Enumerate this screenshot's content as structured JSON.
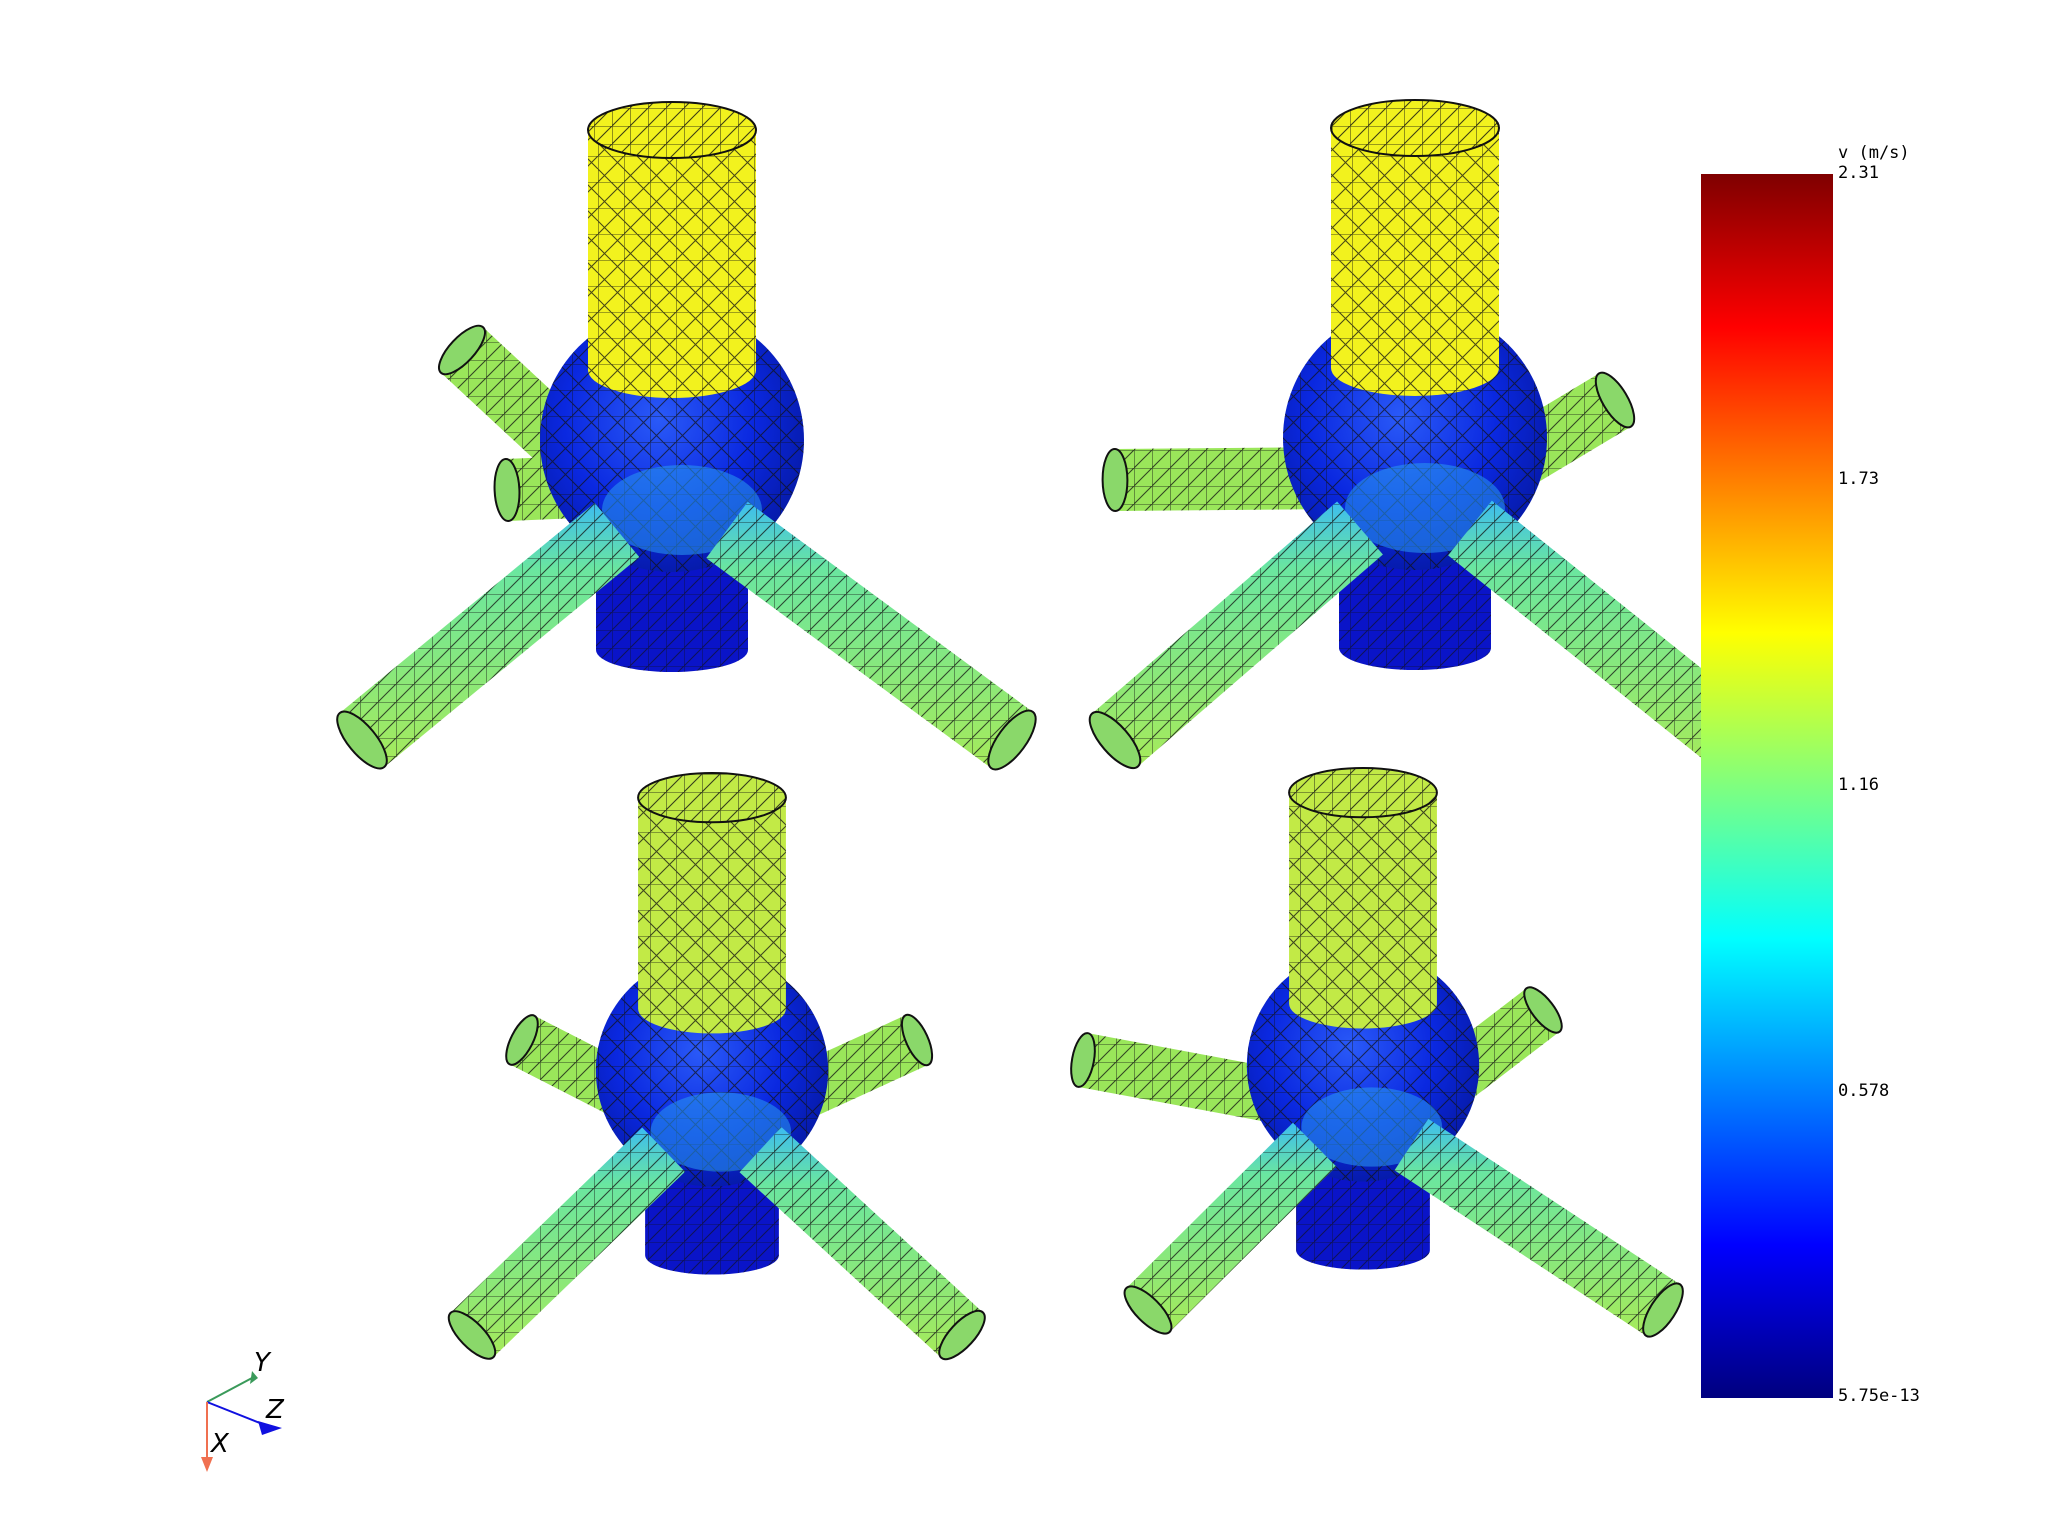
{
  "colorbar": {
    "title": "v (m/s)",
    "ticks": [
      "2.31",
      "1.73",
      "1.16",
      "0.578",
      "5.75e-13"
    ],
    "max": 2.31,
    "min": 5.75e-13,
    "colormap": [
      "#00007f",
      "#0000ff",
      "#007fff",
      "#00ffff",
      "#7fff7f",
      "#ffff00",
      "#ff7f00",
      "#ff0000",
      "#7f0000"
    ]
  },
  "axes_triad": {
    "labels": {
      "x": "X",
      "y": "Y",
      "z": "Z"
    },
    "colors": {
      "x": "#f07050",
      "y": "#3a9a5a",
      "z": "#1010e0"
    }
  },
  "meshes": [
    {
      "view": "top-left",
      "inlet_value": 1.78,
      "bulb_value": 0.25,
      "outlet_value": 1.3,
      "bottom_value": 0.15
    },
    {
      "view": "top-right",
      "inlet_value": 1.75,
      "bulb_value": 0.28,
      "outlet_value": 1.3,
      "bottom_value": 0.18
    },
    {
      "view": "bottom-left",
      "inlet_value": 1.5,
      "bulb_value": 0.22,
      "outlet_value": 1.1,
      "bottom_value": 0.15
    },
    {
      "view": "bottom-right",
      "inlet_value": 1.5,
      "bulb_value": 0.26,
      "outlet_value": 1.1,
      "bottom_value": 0.18
    }
  ],
  "colors": {
    "mesh_lines": "#111111",
    "inlet_yellow": "#f2f21e",
    "pipe_green": "#9ae65a",
    "pipe_teal": "#5ee6a0",
    "bulb_blue": "#0a28e0",
    "bottom_blue": "#0a14c8"
  }
}
